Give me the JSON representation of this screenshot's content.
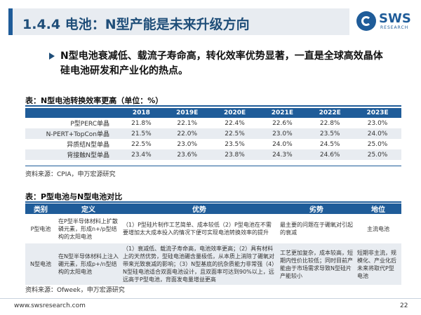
{
  "header": {
    "title": "1.4.4 电池：N型产能是未来升级方向",
    "logo_text": "SWS",
    "logo_sub": "RESEARCH"
  },
  "bullet": "N型电池衰减低、载流子寿命高，转化效率优势显著，一直是全球高效晶体硅电池研发和产业化的热点。",
  "table1": {
    "title": "表：N型电池转换效率更高（单位：%）",
    "columns": [
      "",
      "2018",
      "2019E",
      "2020E",
      "2021E",
      "2022E",
      "2023E"
    ],
    "rows": [
      {
        "label": "P型PERC单晶",
        "values": [
          "21.8%",
          "22.1%",
          "22.4%",
          "22.6%",
          "22.8%",
          "23.0%"
        ]
      },
      {
        "label": "N-PERT+TopCon单晶",
        "values": [
          "21.5%",
          "22.0%",
          "22.5%",
          "23.0%",
          "23.5%",
          "24.0%"
        ]
      },
      {
        "label": "异质结N型单晶",
        "values": [
          "22.5%",
          "23.0%",
          "23.5%",
          "24.0%",
          "24.5%",
          "25.0%"
        ]
      },
      {
        "label": "背接触N型单晶",
        "values": [
          "23.4%",
          "23.6%",
          "23.8%",
          "24.3%",
          "24.6%",
          "25.0%"
        ]
      }
    ],
    "source": "资料来源：CPIA，申万宏源研究"
  },
  "table2": {
    "title": "表：P型电池与N型电池对比",
    "columns": [
      "类别",
      "定义",
      "优势",
      "劣势",
      "地位"
    ],
    "rows": [
      {
        "category": "P型电池",
        "definition": "在P型半导体材料上扩散磷元素，形成n+/p型结构的太阳电池",
        "advantage": "（1）P型硅片制作工艺简单、成本较低（2）P型电池在不需要增加太大成本投入的情况下便可实现电池转换效率的提升",
        "disadvantage": "最主要的问题在于硼氧对引起的衰减",
        "position": "主流电池"
      },
      {
        "category": "N型电池",
        "definition": "在N型半导体材料上注入硼元素，形成p+/n型结构的太阳电池",
        "advantage": "（1）衰减低、载流子寿命高，电池效率更高；（2）具有材料上的天然优势，型硅电池硼含量极低，从本质上消除了硼氧对带来光致衰减的影响；（3）N型基底的抗杂质能力非常强（4）N型硅电池适合双面电池设计，且双面率可达到90%以上，远远高于P型电池，背面发电量增益更高",
        "disadvantage": "工艺更加复杂，成本较高，短期内性价比较低；同时目前产能由于市场需求导致N型硅片产能较小",
        "position": "短期非主流，规模化、产业化后未来将取代P型电池"
      }
    ],
    "source": "资料来源：Ofweek，申万宏源研究"
  },
  "footer": {
    "url": "www.swsresearch.com",
    "page": "22"
  }
}
